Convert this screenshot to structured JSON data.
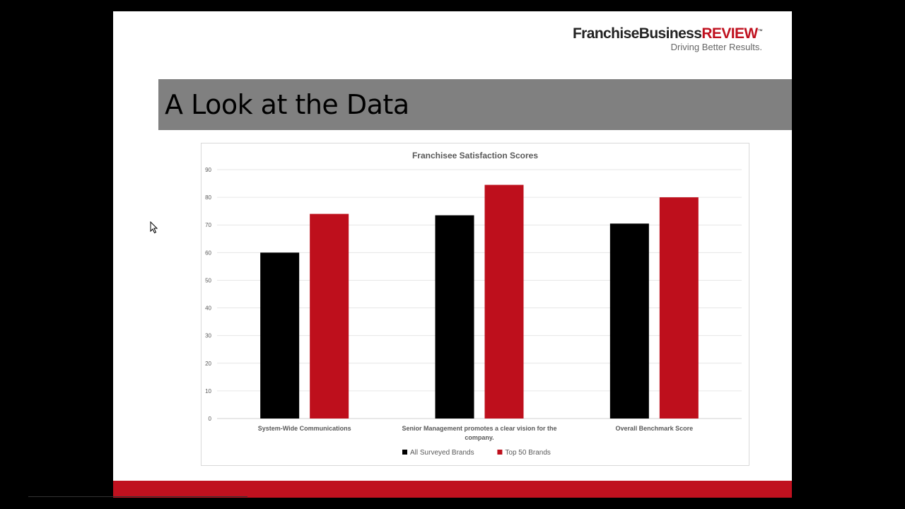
{
  "logo": {
    "brand_black": "FranchiseBusiness",
    "brand_red": "REVIEW",
    "trademark": "™",
    "tagline": "Driving Better Results."
  },
  "slide": {
    "title": "A Look at the Data",
    "footer_text": ""
  },
  "colors": {
    "brand_red": "#c0111f",
    "series_black": "#000000",
    "series_red": "#be0f1c",
    "title_band": "#808080"
  },
  "chart_data": {
    "type": "bar",
    "title": "Franchisee Satisfaction Scores",
    "xlabel": "",
    "ylabel": "",
    "categories": [
      [
        "System-Wide Communications"
      ],
      [
        "Senior Management promotes a clear vision for the",
        "company."
      ],
      [
        "Overall Benchmark Score"
      ]
    ],
    "series": [
      {
        "name": "All Surveyed Brands",
        "color": "#000000",
        "values": [
          60,
          73.5,
          70.5
        ]
      },
      {
        "name": "Top 50 Brands",
        "color": "#be0f1c",
        "values": [
          74,
          84.5,
          80
        ]
      }
    ],
    "ylim": [
      0,
      90
    ],
    "yticks": [
      0,
      10,
      20,
      30,
      40,
      50,
      60,
      70,
      80,
      90
    ],
    "grid": true,
    "legend_position": "bottom"
  }
}
